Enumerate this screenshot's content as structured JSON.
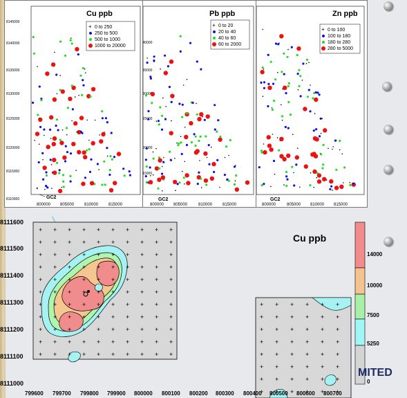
{
  "slide": {
    "footer_word": "MITED",
    "bullet_count": 5
  },
  "panels": [
    {
      "title": "Cu ppb",
      "legend": [
        "0  to  250",
        "250  to  500",
        "500  to  1000",
        "1000  to  20000"
      ],
      "label": "GC2"
    },
    {
      "title": "Pb ppb",
      "legend": [
        "0  to  20",
        "20  to  40",
        "40  to  60",
        "60  to  2000"
      ],
      "label": "GC2"
    },
    {
      "title": "Zn ppb",
      "legend": [
        "0  to  100",
        "100  to  180",
        "180  to  280",
        "280  to  5000"
      ],
      "label": "GC2"
    }
  ],
  "small_axes": {
    "y_ticks": [
      "8145000",
      "8140000",
      "8135000",
      "8130000",
      "8125000",
      "8120000",
      "8115000",
      "8110000"
    ],
    "x_ticks": [
      "800000",
      "805000",
      "810000",
      "815000"
    ]
  },
  "contour_map": {
    "title": "Cu ppb",
    "y_ticks": [
      "8111600",
      "8111500",
      "8111400",
      "8111300",
      "8111200",
      "8111100",
      "8111000"
    ],
    "x_ticks": [
      "799600",
      "799700",
      "799800",
      "799900",
      "800000",
      "800100",
      "800200",
      "800300",
      "800400",
      "800500",
      "800600",
      "800700"
    ],
    "colorbar_labels": [
      "14000",
      "10000",
      "7500",
      "5250",
      "0"
    ],
    "colorbar_colors": [
      "#f08c8c",
      "#f5c38f",
      "#a8f0a8",
      "#a0f5f5",
      "#d4d4d4"
    ]
  },
  "colors": {
    "class1": "#000000",
    "class2": "#1010e0",
    "class3": "#22dd22",
    "class4": "#ee1111"
  }
}
